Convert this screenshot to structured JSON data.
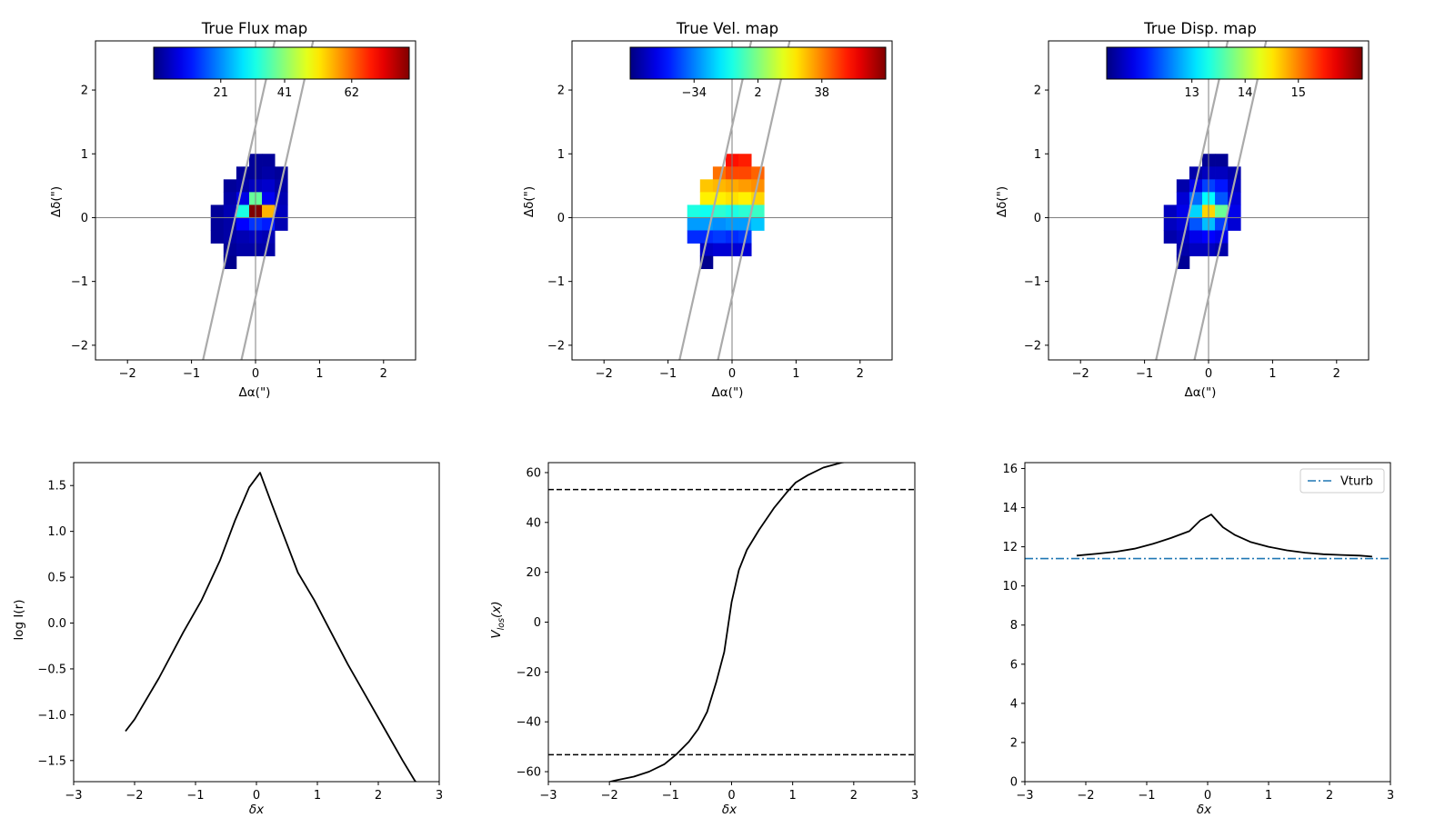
{
  "chart_data": [
    {
      "type": "heatmap",
      "title": "True Flux map",
      "xlabel": "Δα(\")",
      "ylabel": "Δδ(\")",
      "xlim": [
        -2.5,
        2.5
      ],
      "ylim": [
        -2.23,
        2.77
      ],
      "xticks": [
        -2,
        -1,
        0,
        1,
        2
      ],
      "yticks": [
        -2,
        -1,
        0,
        1,
        2
      ],
      "pixel_size": 0.2,
      "grid_x0": -0.7,
      "grid_y0": 1.0,
      "colormap": "jet",
      "clim": [
        0,
        80
      ],
      "colorbar": {
        "ticks": [
          21,
          41,
          62
        ],
        "location": "top"
      },
      "slit_lines": [
        {
          "x1": -0.82,
          "y1": -2.23,
          "x2": 0.3,
          "y2": 2.77
        },
        {
          "x1": -0.22,
          "y1": -2.23,
          "x2": 0.9,
          "y2": 2.77
        }
      ],
      "crosshair": true,
      "values": [
        [
          null,
          null,
          null,
          2,
          2,
          null,
          null
        ],
        [
          null,
          null,
          2,
          2,
          3,
          2,
          null
        ],
        [
          null,
          2,
          3,
          5,
          6,
          3,
          null
        ],
        [
          null,
          3,
          8,
          38,
          9,
          4,
          null
        ],
        [
          2,
          4,
          32,
          80,
          56,
          5,
          null
        ],
        [
          2,
          3,
          10,
          14,
          12,
          4,
          null
        ],
        [
          2,
          3,
          4,
          5,
          4,
          null,
          null
        ],
        [
          null,
          2,
          3,
          3,
          3,
          null,
          null
        ],
        [
          null,
          1,
          null,
          null,
          null,
          null,
          null
        ]
      ]
    },
    {
      "type": "heatmap",
      "title": "True Vel. map",
      "xlabel": "Δα(\")",
      "ylabel": "Δδ(\")",
      "xlim": [
        -2.5,
        2.5
      ],
      "ylim": [
        -2.23,
        2.77
      ],
      "xticks": [
        -2,
        -1,
        0,
        1,
        2
      ],
      "yticks": [
        -2,
        -1,
        0,
        1,
        2
      ],
      "pixel_size": 0.2,
      "grid_x0": -0.7,
      "grid_y0": 1.0,
      "colormap": "jet",
      "clim": [
        -70,
        74
      ],
      "colorbar": {
        "ticks": [
          -34,
          2,
          38
        ],
        "location": "top"
      },
      "slit_lines": [
        {
          "x1": -0.82,
          "y1": -2.23,
          "x2": 0.3,
          "y2": 2.77
        },
        {
          "x1": -0.22,
          "y1": -2.23,
          "x2": 0.9,
          "y2": 2.77
        }
      ],
      "crosshair": true,
      "values": [
        [
          null,
          null,
          null,
          54,
          52,
          null,
          null
        ],
        [
          null,
          null,
          40,
          46,
          46,
          42,
          null
        ],
        [
          null,
          28,
          30,
          32,
          34,
          36,
          null
        ],
        [
          null,
          22,
          22,
          24,
          22,
          26,
          null
        ],
        [
          -12,
          -14,
          -10,
          -12,
          -10,
          -8,
          null
        ],
        [
          -30,
          -30,
          -32,
          -30,
          -30,
          -24,
          null
        ],
        [
          -46,
          -46,
          -44,
          -46,
          -44,
          null,
          null
        ],
        [
          null,
          -60,
          -58,
          -58,
          -58,
          null,
          null
        ],
        [
          null,
          -68,
          null,
          null,
          null,
          null,
          null
        ]
      ]
    },
    {
      "type": "heatmap",
      "title": "True Disp. map",
      "xlabel": "Δα(\")",
      "ylabel": "Δδ(\")",
      "xlim": [
        -2.5,
        2.5
      ],
      "ylim": [
        -2.23,
        2.77
      ],
      "xticks": [
        -2,
        -1,
        0,
        1,
        2
      ],
      "yticks": [
        -2,
        -1,
        0,
        1,
        2
      ],
      "pixel_size": 0.2,
      "grid_x0": -0.7,
      "grid_y0": 1.0,
      "colormap": "jet",
      "clim": [
        11.4,
        16.2
      ],
      "colorbar": {
        "ticks": [
          13,
          14,
          15
        ],
        "location": "top"
      },
      "slit_lines": [
        {
          "x1": -0.82,
          "y1": -2.23,
          "x2": 0.3,
          "y2": 2.77
        },
        {
          "x1": -0.22,
          "y1": -2.23,
          "x2": 0.9,
          "y2": 2.77
        }
      ],
      "crosshair": true,
      "values": [
        [
          null,
          null,
          null,
          11.5,
          11.5,
          null,
          null
        ],
        [
          null,
          null,
          11.6,
          11.7,
          11.7,
          11.6,
          null
        ],
        [
          null,
          11.6,
          11.9,
          12.3,
          12.1,
          11.7,
          null
        ],
        [
          null,
          11.8,
          12.5,
          13.2,
          12.4,
          11.8,
          null
        ],
        [
          11.7,
          11.9,
          13.0,
          14.6,
          13.7,
          11.9,
          null
        ],
        [
          11.7,
          11.8,
          12.4,
          12.9,
          12.3,
          11.8,
          null
        ],
        [
          11.6,
          11.7,
          11.9,
          12.0,
          11.9,
          null,
          null
        ],
        [
          null,
          11.6,
          11.7,
          11.7,
          11.6,
          null,
          null
        ],
        [
          null,
          11.5,
          null,
          null,
          null,
          null,
          null
        ]
      ]
    },
    {
      "type": "line",
      "title": "",
      "xlabel": "δx",
      "ylabel": "log I(r)",
      "xlim": [
        -3,
        3
      ],
      "ylim": [
        -1.73,
        1.75
      ],
      "xticks": [
        -3,
        -2,
        -1,
        0,
        1,
        2,
        3
      ],
      "yticks": [
        -1.5,
        -1.0,
        -0.5,
        0.0,
        0.5,
        1.0,
        1.5
      ],
      "ytick_decimals": 1,
      "series": [
        {
          "color": "#000000",
          "x": [
            -2.15,
            -2.0,
            -1.6,
            -1.2,
            -0.9,
            -0.6,
            -0.35,
            -0.12,
            0.06,
            0.25,
            0.45,
            0.68,
            0.95,
            1.2,
            1.5,
            1.8,
            2.1,
            2.4,
            2.6,
            2.72
          ],
          "y": [
            -1.18,
            -1.05,
            -0.6,
            -0.1,
            0.25,
            0.68,
            1.12,
            1.48,
            1.64,
            1.3,
            0.95,
            0.55,
            0.25,
            -0.07,
            -0.45,
            -0.8,
            -1.15,
            -1.5,
            -1.72,
            -1.8
          ]
        }
      ],
      "hlines": []
    },
    {
      "type": "line",
      "title": "",
      "xlabel": "δx",
      "ylabel": "V_los(x)",
      "xlim": [
        -3,
        3
      ],
      "ylim": [
        -64,
        64
      ],
      "xticks": [
        -3,
        -2,
        -1,
        0,
        1,
        2,
        3
      ],
      "yticks": [
        -60,
        -40,
        -20,
        0,
        20,
        40,
        60
      ],
      "ytick_decimals": 0,
      "series": [
        {
          "color": "#000000",
          "x": [
            -2.15,
            -1.9,
            -1.6,
            -1.35,
            -1.1,
            -0.9,
            -0.7,
            -0.55,
            -0.4,
            -0.25,
            -0.12,
            0.0,
            0.12,
            0.25,
            0.45,
            0.7,
            0.9,
            1.05,
            1.25,
            1.5,
            1.8,
            2.1
          ],
          "y": [
            -65,
            -63.5,
            -62,
            -60,
            -57,
            -53,
            -48,
            -43,
            -36,
            -24,
            -12,
            8,
            21,
            29,
            37,
            46,
            52,
            56,
            59,
            62,
            64,
            65
          ]
        }
      ],
      "hlines": [
        {
          "y": 53.2,
          "style": "dashed",
          "color": "#000000"
        },
        {
          "y": -53.2,
          "style": "dashed",
          "color": "#000000"
        }
      ]
    },
    {
      "type": "line",
      "title": "",
      "xlabel": "δx",
      "ylabel": "",
      "xlim": [
        -3,
        3
      ],
      "ylim": [
        0,
        16.3
      ],
      "xticks": [
        -3,
        -2,
        -1,
        0,
        1,
        2,
        3
      ],
      "yticks": [
        0,
        2,
        4,
        6,
        8,
        10,
        12,
        14,
        16
      ],
      "ytick_decimals": 0,
      "legend": {
        "entries": [
          "Vturb"
        ],
        "location": "top-right"
      },
      "series": [
        {
          "color": "#000000",
          "x": [
            -2.15,
            -1.8,
            -1.5,
            -1.2,
            -0.9,
            -0.6,
            -0.3,
            -0.12,
            0.06,
            0.25,
            0.45,
            0.7,
            1.0,
            1.3,
            1.6,
            1.9,
            2.2,
            2.5,
            2.7
          ],
          "y": [
            11.55,
            11.65,
            11.75,
            11.9,
            12.15,
            12.45,
            12.8,
            13.35,
            13.65,
            13.0,
            12.6,
            12.25,
            12.0,
            11.82,
            11.7,
            11.62,
            11.58,
            11.55,
            11.5
          ]
        }
      ],
      "hlines": [
        {
          "y": 11.4,
          "style": "dashdot",
          "color": "#1f77b4",
          "name": "Vturb"
        }
      ]
    }
  ]
}
